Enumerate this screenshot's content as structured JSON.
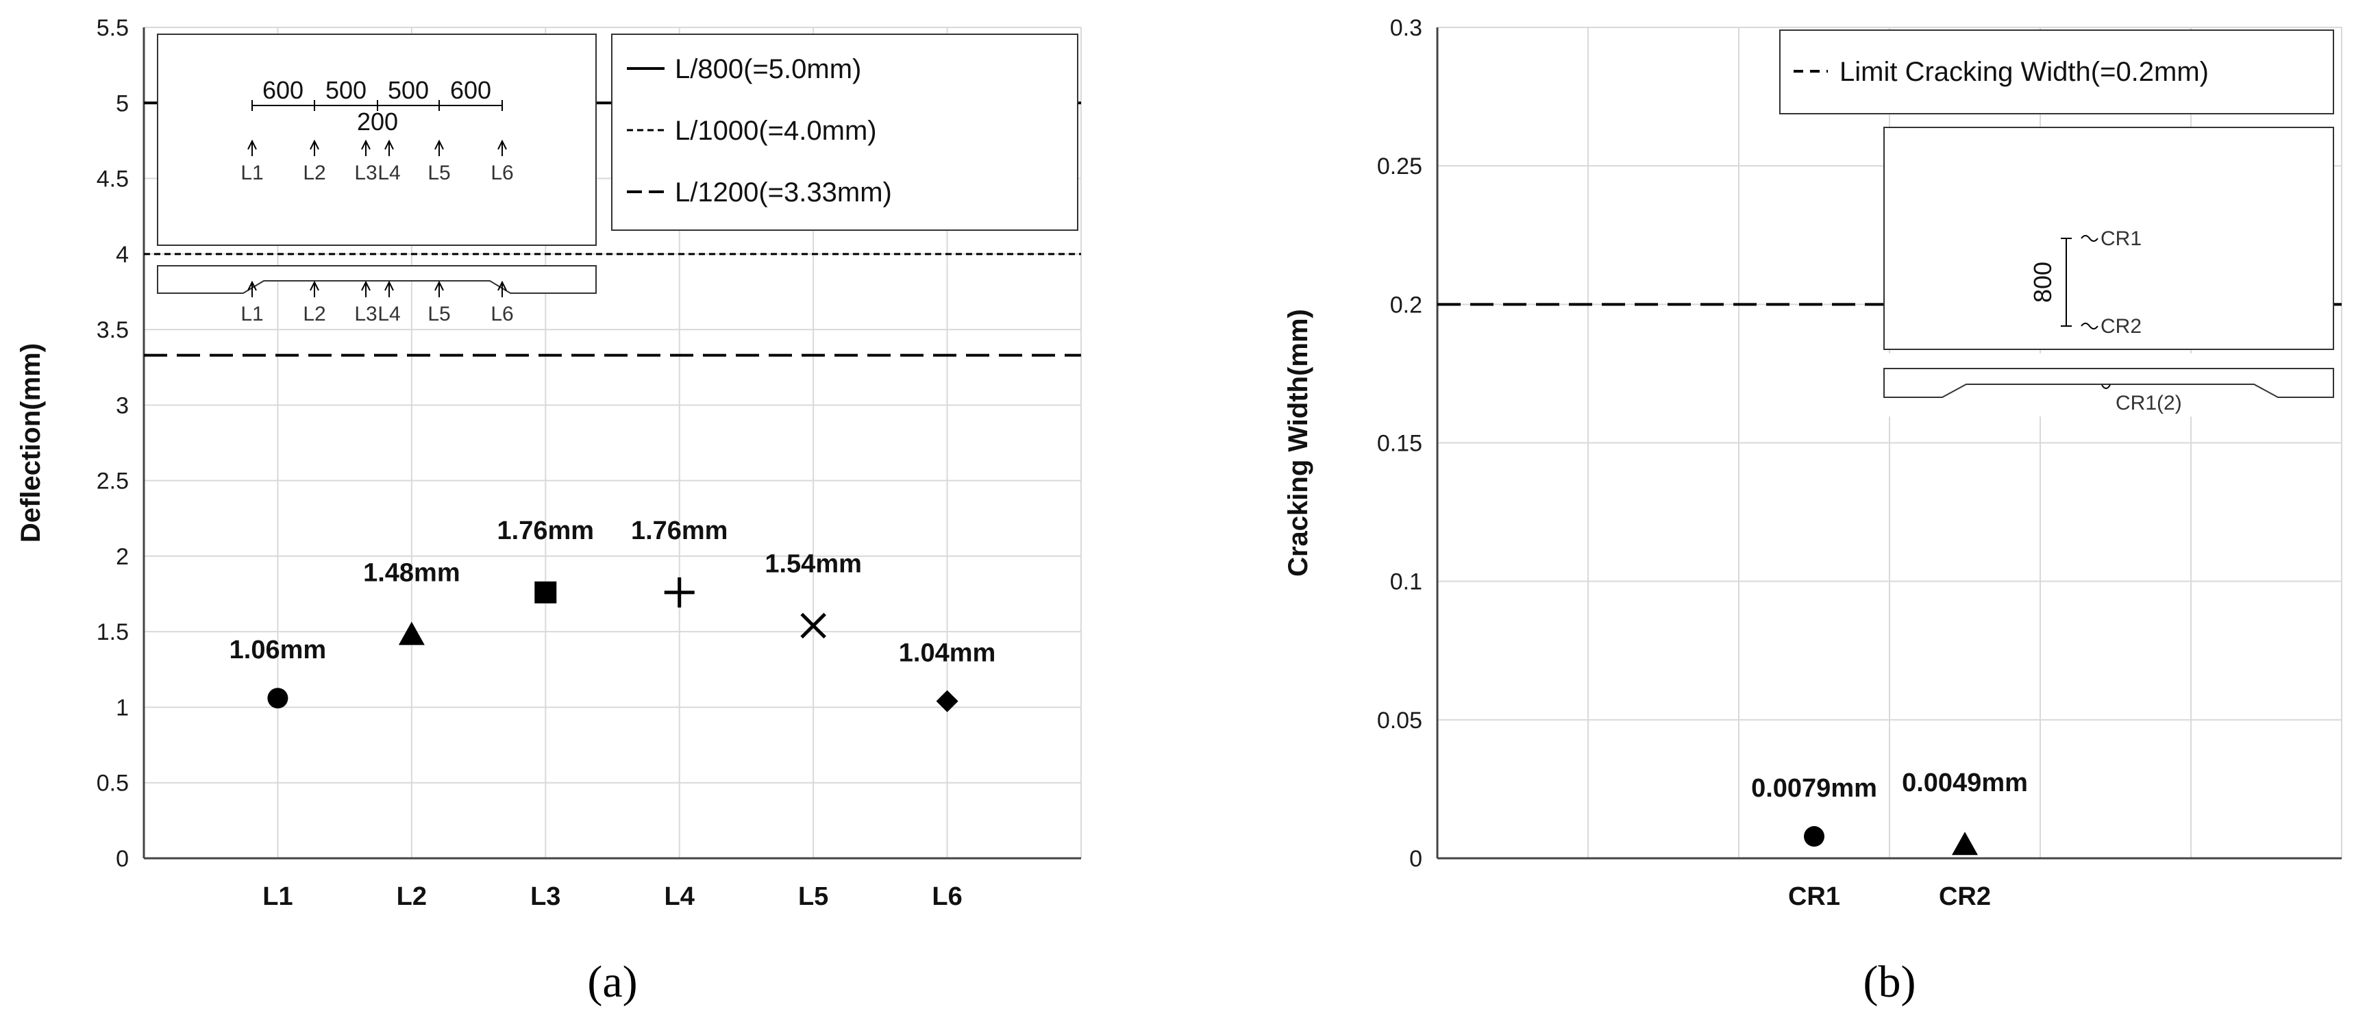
{
  "chart_data": [
    {
      "type": "scatter",
      "panel_label": "(a)",
      "categories": [
        "L1",
        "L2",
        "L3",
        "L4",
        "L5",
        "L6"
      ],
      "values": [
        1.06,
        1.48,
        1.76,
        1.76,
        1.54,
        1.04
      ],
      "data_labels": [
        "1.06mm",
        "1.48mm",
        "1.76mm",
        "1.76mm",
        "1.54mm",
        "1.04mm"
      ],
      "markers": [
        "circle",
        "triangle",
        "square",
        "plus",
        "cross",
        "diamond"
      ],
      "ylabel": "Deflection(mm)",
      "ylim": [
        0,
        5.5
      ],
      "yticks": [
        "0",
        "0.5",
        "1",
        "1.5",
        "2",
        "2.5",
        "3",
        "3.5",
        "4",
        "4.5",
        "5",
        "5.5"
      ],
      "grid": true,
      "reference_lines": [
        {
          "label": "L/800(=5.0mm)",
          "value": 5.0,
          "style": "solid"
        },
        {
          "label": "L/1000(=4.0mm)",
          "value": 4.0,
          "style": "dotted"
        },
        {
          "label": "L/1200(=3.33mm)",
          "value": 3.33,
          "style": "dashed"
        }
      ],
      "legend_position": "top-right",
      "inset": {
        "dimensions_top": [
          "600",
          "500",
          "500",
          "600"
        ],
        "dimension_center": "200",
        "sensor_labels": [
          "L1",
          "L2",
          "L3",
          "L4",
          "L5",
          "L6"
        ]
      }
    },
    {
      "type": "scatter",
      "panel_label": "(b)",
      "categories": [
        "CR1",
        "CR2"
      ],
      "values": [
        0.0079,
        0.0049
      ],
      "data_labels": [
        "0.0079mm",
        "0.0049mm"
      ],
      "markers": [
        "circle",
        "triangle"
      ],
      "ylabel": "Cracking Width(mm)",
      "ylim": [
        0,
        0.3
      ],
      "yticks": [
        "0",
        "0.05",
        "0.1",
        "0.15",
        "0.2",
        "0.25",
        "0.3"
      ],
      "grid": true,
      "reference_lines": [
        {
          "label": "Limit Cracking Width(=0.2mm)",
          "value": 0.2,
          "style": "dashed"
        }
      ],
      "legend_position": "top-right",
      "inset": {
        "dimension": "800",
        "sensor_labels": [
          "CR1",
          "CR2"
        ],
        "section_label": "CR1(2)"
      }
    }
  ]
}
